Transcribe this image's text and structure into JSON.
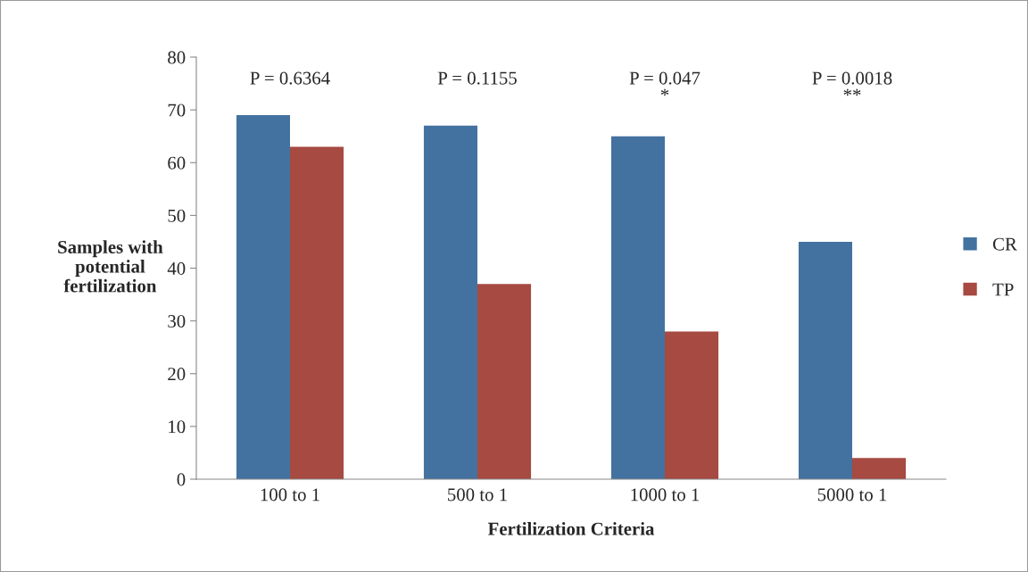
{
  "chart_data": {
    "type": "bar",
    "xlabel": "Fertilization Criteria",
    "ylabel": "Samples with\npotential\nfertilization",
    "categories": [
      "100 to 1",
      "500 to 1",
      "1000 to 1",
      "5000 to 1"
    ],
    "series": [
      {
        "name": "CR",
        "color": "#4472a0",
        "values": [
          69,
          67,
          65,
          45
        ]
      },
      {
        "name": "TP",
        "color": "#a64a42",
        "values": [
          63,
          37,
          28,
          4
        ]
      }
    ],
    "ylim": [
      0,
      80
    ],
    "yticks": [
      0,
      10,
      20,
      30,
      40,
      50,
      60,
      70,
      80
    ],
    "grid": false,
    "legend": "right",
    "annotations": [
      "P = 0.6364",
      "P = 0.1155",
      "P = 0.047\n*",
      "P = 0.0018\n**"
    ]
  }
}
